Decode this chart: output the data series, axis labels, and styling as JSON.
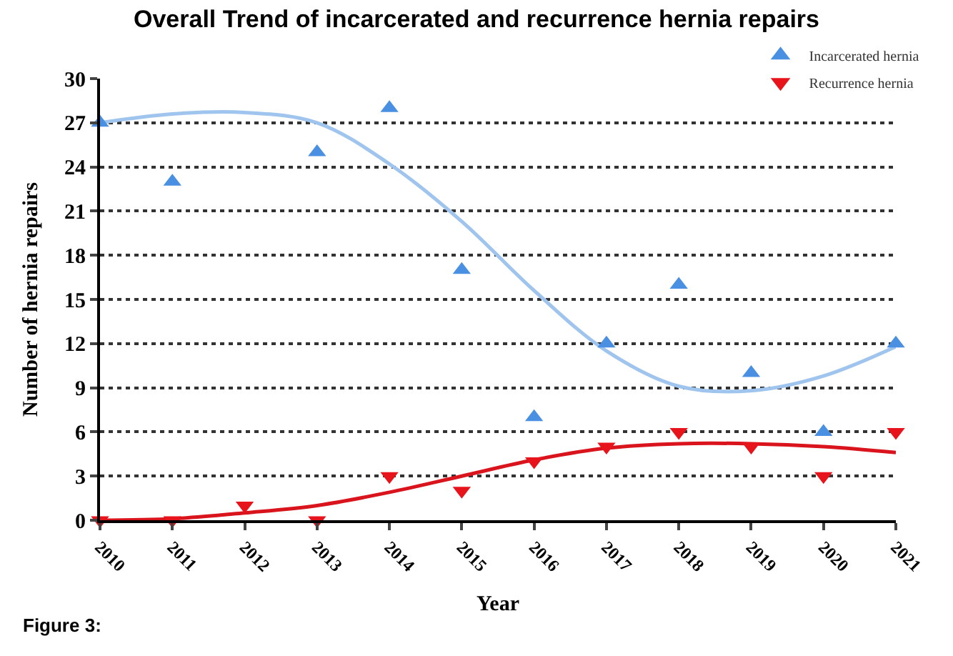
{
  "chart_data": {
    "type": "scatter",
    "title": "Overall Trend of incarcerated and recurrence hernia repairs",
    "xlabel": "Year",
    "ylabel": "Number of hernia repairs",
    "x": [
      2010,
      2011,
      2012,
      2013,
      2014,
      2015,
      2016,
      2017,
      2018,
      2019,
      2020,
      2021
    ],
    "series": [
      {
        "name": "Incarcerated hernia",
        "color": "#4a90e2",
        "marker": "triangle",
        "values": [
          27,
          23,
          null,
          25,
          28,
          17,
          7,
          12,
          16,
          10,
          6,
          12
        ]
      },
      {
        "name": "Recurrence hernia",
        "color": "#e8141c",
        "marker": "triangle-down",
        "values": [
          0,
          0,
          1,
          0,
          3,
          2,
          4,
          5,
          6,
          5,
          3,
          6
        ]
      },
      {
        "type": "line",
        "color": "#9fc5ee",
        "marker": "none",
        "x": [
          2010,
          2011,
          2012,
          2013,
          2014,
          2015,
          2016,
          2017,
          2018,
          2019,
          2020,
          2021
        ],
        "values": [
          27,
          27.6,
          27.7,
          27,
          24.2,
          20.3,
          15.6,
          11.5,
          9.1,
          8.8,
          9.8,
          11.8
        ]
      },
      {
        "type": "line",
        "color": "#d9141c",
        "marker": "none",
        "x": [
          2010,
          2011,
          2012,
          2013,
          2014,
          2015,
          2016,
          2017,
          2018,
          2019,
          2020,
          2021
        ],
        "values": [
          0,
          0.1,
          0.5,
          1,
          1.9,
          3,
          4.1,
          4.9,
          5.2,
          5.2,
          5,
          4.6
        ]
      }
    ],
    "xlim": [
      2010,
      2021
    ],
    "xticks": [
      2010,
      2011,
      2012,
      2013,
      2014,
      2015,
      2016,
      2017,
      2018,
      2019,
      2020,
      2021
    ],
    "ylim": [
      0,
      30
    ],
    "yticks": [
      0,
      3,
      6,
      9,
      12,
      15,
      18,
      21,
      24,
      27,
      30
    ],
    "grid": "y",
    "legend": "top right",
    "line_style": "solid",
    "annotations": [
      "Figure 3:"
    ]
  }
}
